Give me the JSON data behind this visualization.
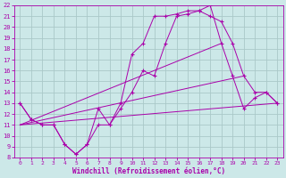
{
  "xlabel": "Windchill (Refroidissement éolien,°C)",
  "xlim": [
    -0.5,
    23.5
  ],
  "ylim": [
    8,
    22
  ],
  "xticks": [
    0,
    1,
    2,
    3,
    4,
    5,
    6,
    7,
    8,
    9,
    10,
    11,
    12,
    13,
    14,
    15,
    16,
    17,
    18,
    19,
    20,
    21,
    22,
    23
  ],
  "yticks": [
    8,
    9,
    10,
    11,
    12,
    13,
    14,
    15,
    16,
    17,
    18,
    19,
    20,
    21,
    22
  ],
  "background_color": "#cce8e8",
  "grid_color": "#aac8c8",
  "line_color": "#aa00aa",
  "lines": [
    {
      "x": [
        0,
        1,
        2,
        3,
        4,
        5,
        6,
        7,
        8,
        9,
        10,
        11,
        12,
        13,
        14,
        15,
        16,
        17,
        18,
        19,
        20,
        21,
        22,
        23
      ],
      "y": [
        13,
        11.5,
        11,
        11,
        9.2,
        8.3,
        9.2,
        11,
        11,
        13,
        17.5,
        18.5,
        21,
        21,
        21.2,
        21.5,
        21.5,
        21,
        20.5,
        18.5,
        15.5,
        14,
        14,
        13
      ],
      "marker": true
    },
    {
      "x": [
        0,
        1,
        2,
        3,
        4,
        5,
        6,
        7,
        8,
        9,
        10,
        11,
        12,
        13,
        14,
        15,
        16,
        17,
        18,
        19,
        20,
        21,
        22,
        23
      ],
      "y": [
        13,
        11.5,
        11,
        11,
        9.2,
        8.3,
        9.2,
        12.5,
        11,
        12.5,
        14,
        16,
        15.5,
        18.5,
        21,
        21.2,
        21.5,
        22,
        18.5,
        15.5,
        12.5,
        13.5,
        14,
        13
      ],
      "marker": true
    },
    {
      "x": [
        0,
        18
      ],
      "y": [
        11,
        18.5
      ],
      "marker": false
    },
    {
      "x": [
        0,
        20
      ],
      "y": [
        11,
        15.5
      ],
      "marker": false
    },
    {
      "x": [
        0,
        23
      ],
      "y": [
        11,
        13
      ],
      "marker": false
    }
  ]
}
